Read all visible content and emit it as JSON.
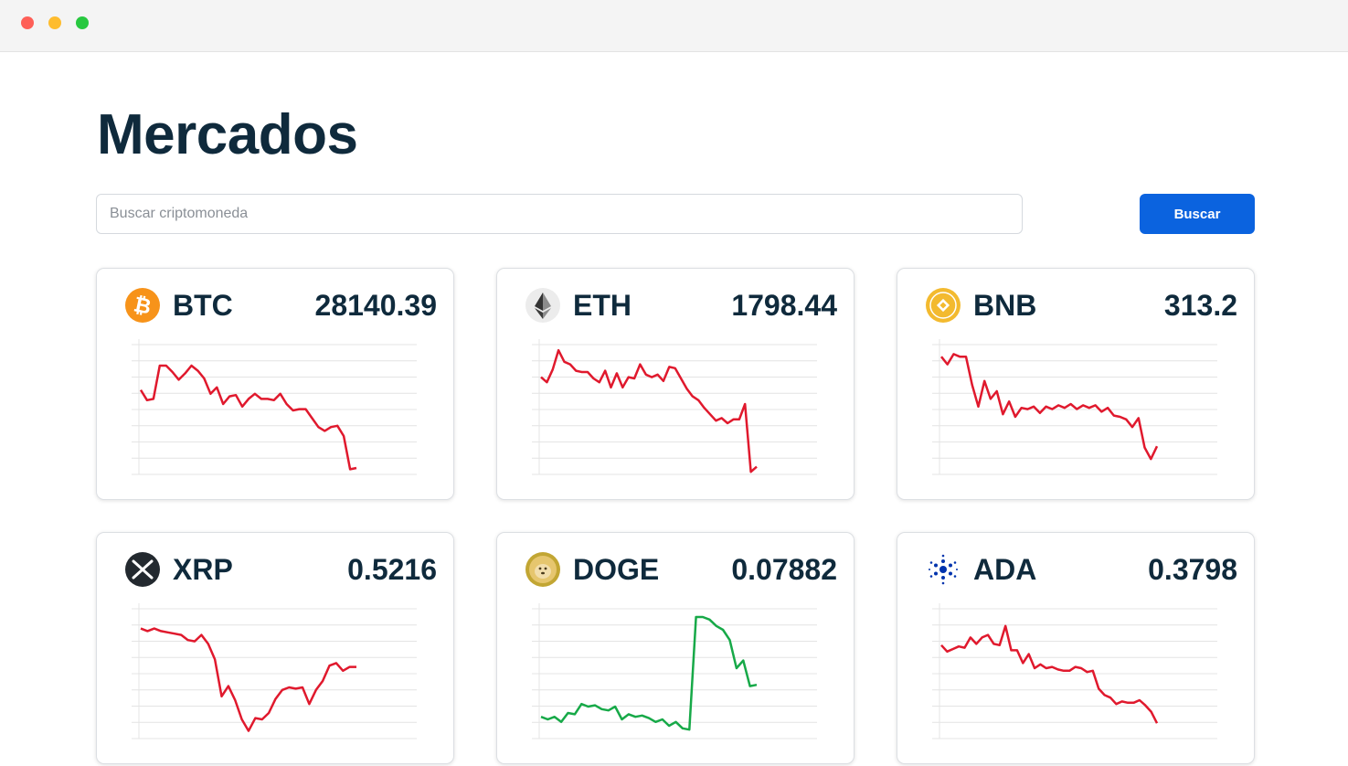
{
  "window": {
    "controls": [
      "close",
      "minimize",
      "maximize"
    ]
  },
  "page": {
    "title": "Mercados"
  },
  "search": {
    "placeholder": "Buscar criptomoneda",
    "value": "",
    "button_label": "Buscar"
  },
  "colors": {
    "down": "#e0192d",
    "up": "#17a948",
    "primary": "#0b63df",
    "title": "#0f2a3c"
  },
  "coins": [
    {
      "symbol": "BTC",
      "price": "28140.39",
      "icon": "bitcoin-icon",
      "trend": "down",
      "series": [
        0.66,
        0.58,
        0.59,
        0.85,
        0.85,
        0.8,
        0.74,
        0.79,
        0.85,
        0.81,
        0.75,
        0.63,
        0.68,
        0.55,
        0.61,
        0.62,
        0.53,
        0.59,
        0.63,
        0.59,
        0.59,
        0.58,
        0.63,
        0.55,
        0.5,
        0.51,
        0.51,
        0.44,
        0.37,
        0.34,
        0.37,
        0.38,
        0.3,
        0.04,
        0.05
      ]
    },
    {
      "symbol": "ETH",
      "price": "1798.44",
      "icon": "ethereum-icon",
      "trend": "down",
      "series": [
        0.76,
        0.72,
        0.82,
        0.97,
        0.88,
        0.86,
        0.81,
        0.8,
        0.8,
        0.75,
        0.72,
        0.81,
        0.68,
        0.79,
        0.68,
        0.76,
        0.75,
        0.86,
        0.78,
        0.76,
        0.78,
        0.73,
        0.84,
        0.83,
        0.75,
        0.67,
        0.61,
        0.58,
        0.52,
        0.47,
        0.42,
        0.44,
        0.4,
        0.43,
        0.43,
        0.55,
        0.02,
        0.06
      ]
    },
    {
      "symbol": "BNB",
      "price": "313.2",
      "icon": "bnb-icon",
      "trend": "down",
      "series": [
        0.92,
        0.86,
        0.94,
        0.92,
        0.92,
        0.7,
        0.53,
        0.73,
        0.59,
        0.65,
        0.47,
        0.57,
        0.45,
        0.52,
        0.51,
        0.53,
        0.48,
        0.53,
        0.51,
        0.54,
        0.52,
        0.55,
        0.51,
        0.54,
        0.52,
        0.54,
        0.49,
        0.52,
        0.46,
        0.45,
        0.43,
        0.37,
        0.44,
        0.21,
        0.12,
        0.22
      ]
    },
    {
      "symbol": "XRP",
      "price": "0.5216",
      "icon": "xrp-icon",
      "trend": "down",
      "series": [
        0.86,
        0.84,
        0.86,
        0.84,
        0.83,
        0.82,
        0.81,
        0.77,
        0.76,
        0.81,
        0.74,
        0.62,
        0.33,
        0.41,
        0.3,
        0.15,
        0.06,
        0.16,
        0.15,
        0.2,
        0.31,
        0.38,
        0.4,
        0.39,
        0.4,
        0.27,
        0.38,
        0.45,
        0.57,
        0.59,
        0.53,
        0.56,
        0.56
      ]
    },
    {
      "symbol": "DOGE",
      "price": "0.07882",
      "icon": "dogecoin-icon",
      "trend": "up",
      "series": [
        0.17,
        0.15,
        0.17,
        0.13,
        0.2,
        0.19,
        0.27,
        0.25,
        0.26,
        0.23,
        0.22,
        0.25,
        0.15,
        0.19,
        0.17,
        0.18,
        0.16,
        0.13,
        0.15,
        0.1,
        0.13,
        0.08,
        0.07,
        0.95,
        0.95,
        0.93,
        0.88,
        0.85,
        0.77,
        0.55,
        0.61,
        0.41,
        0.42
      ]
    },
    {
      "symbol": "ADA",
      "price": "0.3798",
      "icon": "cardano-icon",
      "trend": "down",
      "series": [
        0.73,
        0.68,
        0.7,
        0.72,
        0.71,
        0.79,
        0.74,
        0.79,
        0.81,
        0.74,
        0.73,
        0.88,
        0.69,
        0.69,
        0.59,
        0.66,
        0.55,
        0.58,
        0.55,
        0.56,
        0.54,
        0.53,
        0.53,
        0.56,
        0.55,
        0.52,
        0.53,
        0.39,
        0.34,
        0.32,
        0.27,
        0.29,
        0.28,
        0.28,
        0.3,
        0.26,
        0.21,
        0.12
      ]
    }
  ]
}
